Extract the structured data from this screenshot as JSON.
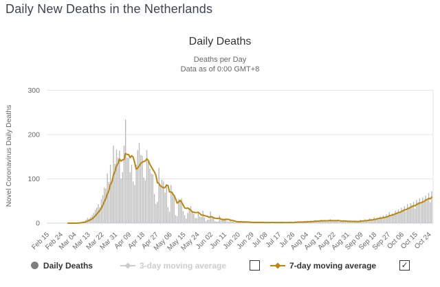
{
  "page": {
    "title": "Daily New Deaths in the Netherlands"
  },
  "colors": {
    "accent_gold": "#b8860b",
    "bar_gray": "#b9b9b9",
    "grid": "#e6e6e6",
    "axis_line": "#ccd6eb",
    "tick_text": "#666666",
    "page_title_text": "#3c4450",
    "chart_title_text": "#333333",
    "subtitle_text": "#666666",
    "legend_disabled": "#cccccc",
    "legend_marker_gray": "#7f7f7f"
  },
  "legend": {
    "daily_deaths_label": "Daily Deaths",
    "ma3_label": "3-day moving average",
    "ma7_label": "7-day moving average",
    "ma3_checkbox": {
      "checked": false,
      "glyph": ""
    },
    "ma7_checkbox": {
      "checked": true,
      "glyph": "✓"
    }
  },
  "chart_data": {
    "type": "bar",
    "title": "Daily Deaths",
    "subtitle_line1": "Deaths per Day",
    "subtitle_line2": "Data as of 0:00 GMT+8",
    "y_axis_title": "Novel Coronavirus Daily Deaths",
    "ylim": [
      0,
      300
    ],
    "y_ticks": [
      0,
      100,
      200,
      300
    ],
    "grid": true,
    "legend_position": "bottom",
    "x_start_date": "Feb 15",
    "x_end_date": "Oct 26",
    "x_tick_interval_days": 9,
    "x_tick_labels": [
      "Feb 15",
      "Feb 24",
      "Mar 04",
      "Mar 13",
      "Mar 22",
      "Mar 31",
      "Apr 09",
      "Apr 18",
      "Apr 27",
      "May 06",
      "May 15",
      "May 24",
      "Jun 02",
      "Jun 11",
      "Jun 20",
      "Jun 29",
      "Jul 08",
      "Jul 17",
      "Jul 26",
      "Aug 04",
      "Aug 13",
      "Aug 22",
      "Aug 31",
      "Sep 09",
      "Sep 18",
      "Sep 27",
      "Oct 06",
      "Oct 15",
      "Oct 24"
    ],
    "series": [
      {
        "name": "Daily Deaths",
        "type": "bar",
        "visible": true,
        "values": [
          0,
          0,
          0,
          0,
          0,
          0,
          0,
          0,
          0,
          0,
          0,
          0,
          0,
          0,
          0,
          0,
          0,
          0,
          0,
          0,
          1,
          1,
          2,
          3,
          4,
          4,
          8,
          12,
          10,
          14,
          18,
          23,
          30,
          35,
          43,
          36,
          54,
          63,
          80,
          78,
          112,
          93,
          132,
          93,
          175,
          134,
          166,
          148,
          164,
          101,
          115,
          175,
          234,
          148,
          147,
          115,
          132,
          94,
          86,
          132,
          165,
          181,
          154,
          152,
          103,
          97,
          165,
          138,
          123,
          112,
          110,
          66,
          43,
          48,
          125,
          84,
          98,
          94,
          69,
          86,
          36,
          26,
          86,
          71,
          63,
          18,
          16,
          54,
          52,
          56,
          27,
          18,
          10,
          23,
          35,
          38,
          27,
          22,
          12,
          11,
          26,
          15,
          14,
          28,
          13,
          5,
          8,
          8,
          26,
          12,
          14,
          5,
          3,
          4,
          17,
          7,
          10,
          8,
          11,
          4,
          3,
          6,
          4,
          4,
          2,
          1,
          2,
          3,
          5,
          3,
          3,
          2,
          1,
          0,
          2,
          2,
          2,
          3,
          1,
          2,
          0,
          1,
          3,
          2,
          1,
          0,
          2,
          1,
          2,
          3,
          1,
          0,
          1,
          2,
          1,
          3,
          2,
          1,
          0,
          1,
          2,
          3,
          1,
          2,
          4,
          2,
          3,
          2,
          3,
          2,
          4,
          3,
          5,
          2,
          6,
          3,
          4,
          7,
          5,
          3,
          6,
          8,
          4,
          5,
          7,
          3,
          6,
          9,
          5,
          4,
          7,
          5,
          6,
          3,
          5,
          4,
          6,
          3,
          4,
          3,
          5,
          2,
          4,
          6,
          3,
          2,
          5,
          8,
          6,
          5,
          9,
          4,
          6,
          11,
          9,
          8,
          13,
          10,
          12,
          10,
          15,
          12,
          17,
          13,
          20,
          16,
          25,
          18,
          22,
          20,
          28,
          24,
          31,
          26,
          35,
          30,
          38,
          27,
          43,
          36,
          45,
          41,
          48,
          33,
          52,
          47,
          56,
          44,
          58,
          50,
          62,
          55,
          68,
          47,
          72
        ]
      },
      {
        "name": "3-day moving average",
        "type": "line",
        "visible": false
      },
      {
        "name": "7-day moving average",
        "type": "line",
        "visible": true,
        "derivation": "trailing 7-day mean of Daily Deaths values"
      }
    ]
  }
}
